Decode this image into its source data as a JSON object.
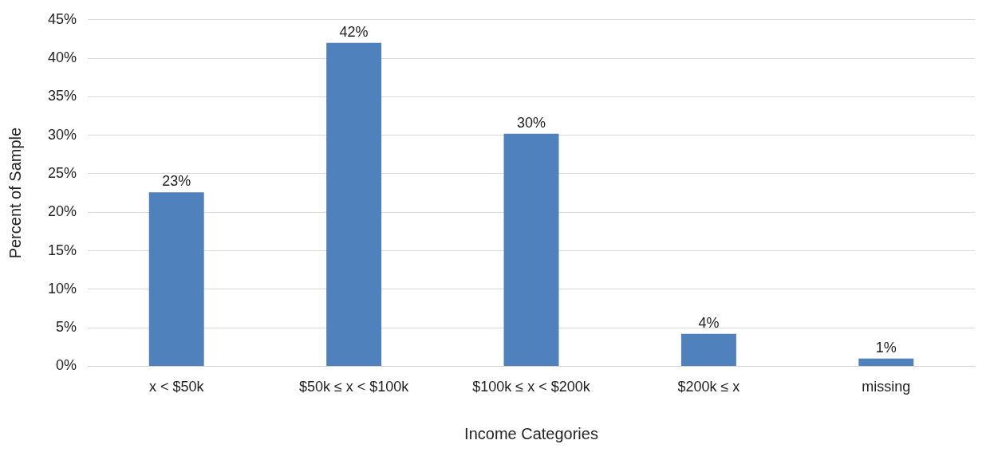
{
  "chart_data": {
    "type": "bar",
    "xlabel": "Income Categories",
    "ylabel": "Percent of Sample",
    "categories": [
      "x < $50k",
      "$50k ≤ x < $100k",
      "$100k ≤ x < $200k",
      "$200k ≤ x",
      "missing"
    ],
    "values": [
      22.6,
      42,
      30.2,
      4.2,
      1.0
    ],
    "value_labels": [
      "23%",
      "42%",
      "30%",
      "4%",
      "1%"
    ],
    "color": "#4f81bd",
    "ylim": [
      0,
      45
    ],
    "yticks": [
      {
        "value": 0,
        "label": "0%"
      },
      {
        "value": 5,
        "label": "5%"
      },
      {
        "value": 10,
        "label": "10%"
      },
      {
        "value": 15,
        "label": "15%"
      },
      {
        "value": 20,
        "label": "20%"
      },
      {
        "value": 25,
        "label": "25%"
      },
      {
        "value": 30,
        "label": "30%"
      },
      {
        "value": 35,
        "label": "35%"
      },
      {
        "value": 40,
        "label": "40%"
      },
      {
        "value": 45,
        "label": "45%"
      }
    ],
    "grid": "y"
  }
}
